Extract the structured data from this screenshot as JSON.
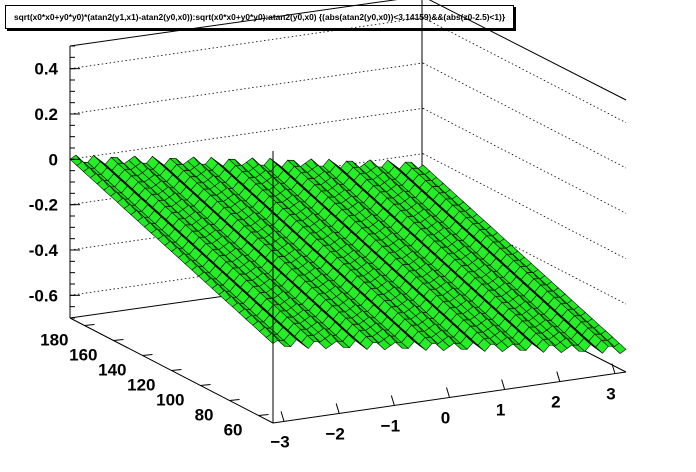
{
  "title": "sqrt(x0*x0+y0*y0)*(atan2(y1,x1)-atan2(y0,x0)):sqrt(x0*x0+y0*y0):atan2(y0,x0) {(abs(atan2(y0,x0))<3.14159)&&(abs(z0-2.5)<1)}",
  "chart_data": {
    "type": "surface",
    "title": "sqrt(x0*x0+y0*y0)*(atan2(y1,x1)-atan2(y0,x0)):sqrt(x0*x0+y0*y0):atan2(y0,x0) {(abs(atan2(y0,x0))<3.14159)&&(abs(z0-2.5)<1)}",
    "xlabel": "",
    "ylabel": "",
    "zlabel": "",
    "x_range": [
      -3.2,
      3.2
    ],
    "y_range": [
      50,
      190
    ],
    "z_range": [
      -0.7,
      0.5
    ],
    "x_ticks": [
      "-3",
      "-2",
      "-1",
      "0",
      "1",
      "2",
      "3"
    ],
    "y_ticks": [
      "60",
      "80",
      "100",
      "120",
      "140",
      "160",
      "180"
    ],
    "z_ticks": [
      "0.4",
      "0.2",
      "0",
      "-0.2",
      "-0.4",
      "-0.6"
    ],
    "surface": {
      "description_free": true,
      "z_at_x_min_y_max": 0.0,
      "z_at_x_max_y_max": -0.25,
      "z_at_x_min_y_min": -0.35,
      "z_at_x_max_y_min": -0.6,
      "ripple_amplitude": 0.02,
      "ripple_count_along_x": 18
    },
    "surface_fill_color": "#33ee33",
    "mesh_color": "#000000",
    "grid": true
  }
}
